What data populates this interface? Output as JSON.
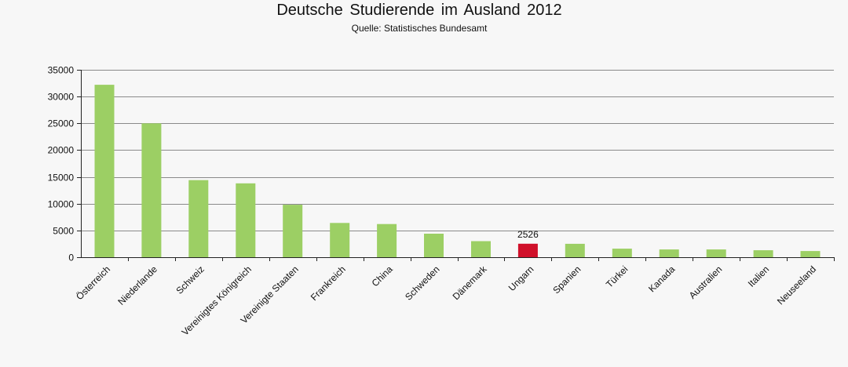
{
  "title": "Deutsche Studierende  im Ausland  2012",
  "subtitle": "Quelle:  Statistisches Bundesamt",
  "colors": {
    "bar": "#9ccf64",
    "highlight": "#d0102a",
    "grid": "#8a8a8a",
    "axis": "#222222"
  },
  "chart_data": {
    "type": "bar",
    "title": "Deutsche Studierende  im Ausland  2012",
    "subtitle": "Quelle:  Statistisches Bundesamt",
    "xlabel": "",
    "ylabel": "",
    "ylim": [
      0,
      35000
    ],
    "yticks": [
      0,
      5000,
      10000,
      15000,
      20000,
      25000,
      30000,
      35000
    ],
    "grid": true,
    "legend": "none",
    "categories": [
      "Österreich",
      "Niederlande",
      "Schweiz",
      "Vereinigtes Königreich",
      "Vereinigte Staaten",
      "Frankreich",
      "China",
      "Schweden",
      "Dänemark",
      "Ungarn",
      "Spanien",
      "Türkei",
      "Kanada",
      "Australien",
      "Italien",
      "Neuseeland"
    ],
    "values": [
      32200,
      25000,
      14400,
      13800,
      9800,
      6400,
      6200,
      4400,
      3000,
      2526,
      2500,
      1600,
      1450,
      1450,
      1300,
      1150
    ],
    "highlight_category": "Ungarn",
    "annotations": [
      {
        "category": "Ungarn",
        "text": "2526"
      }
    ]
  }
}
